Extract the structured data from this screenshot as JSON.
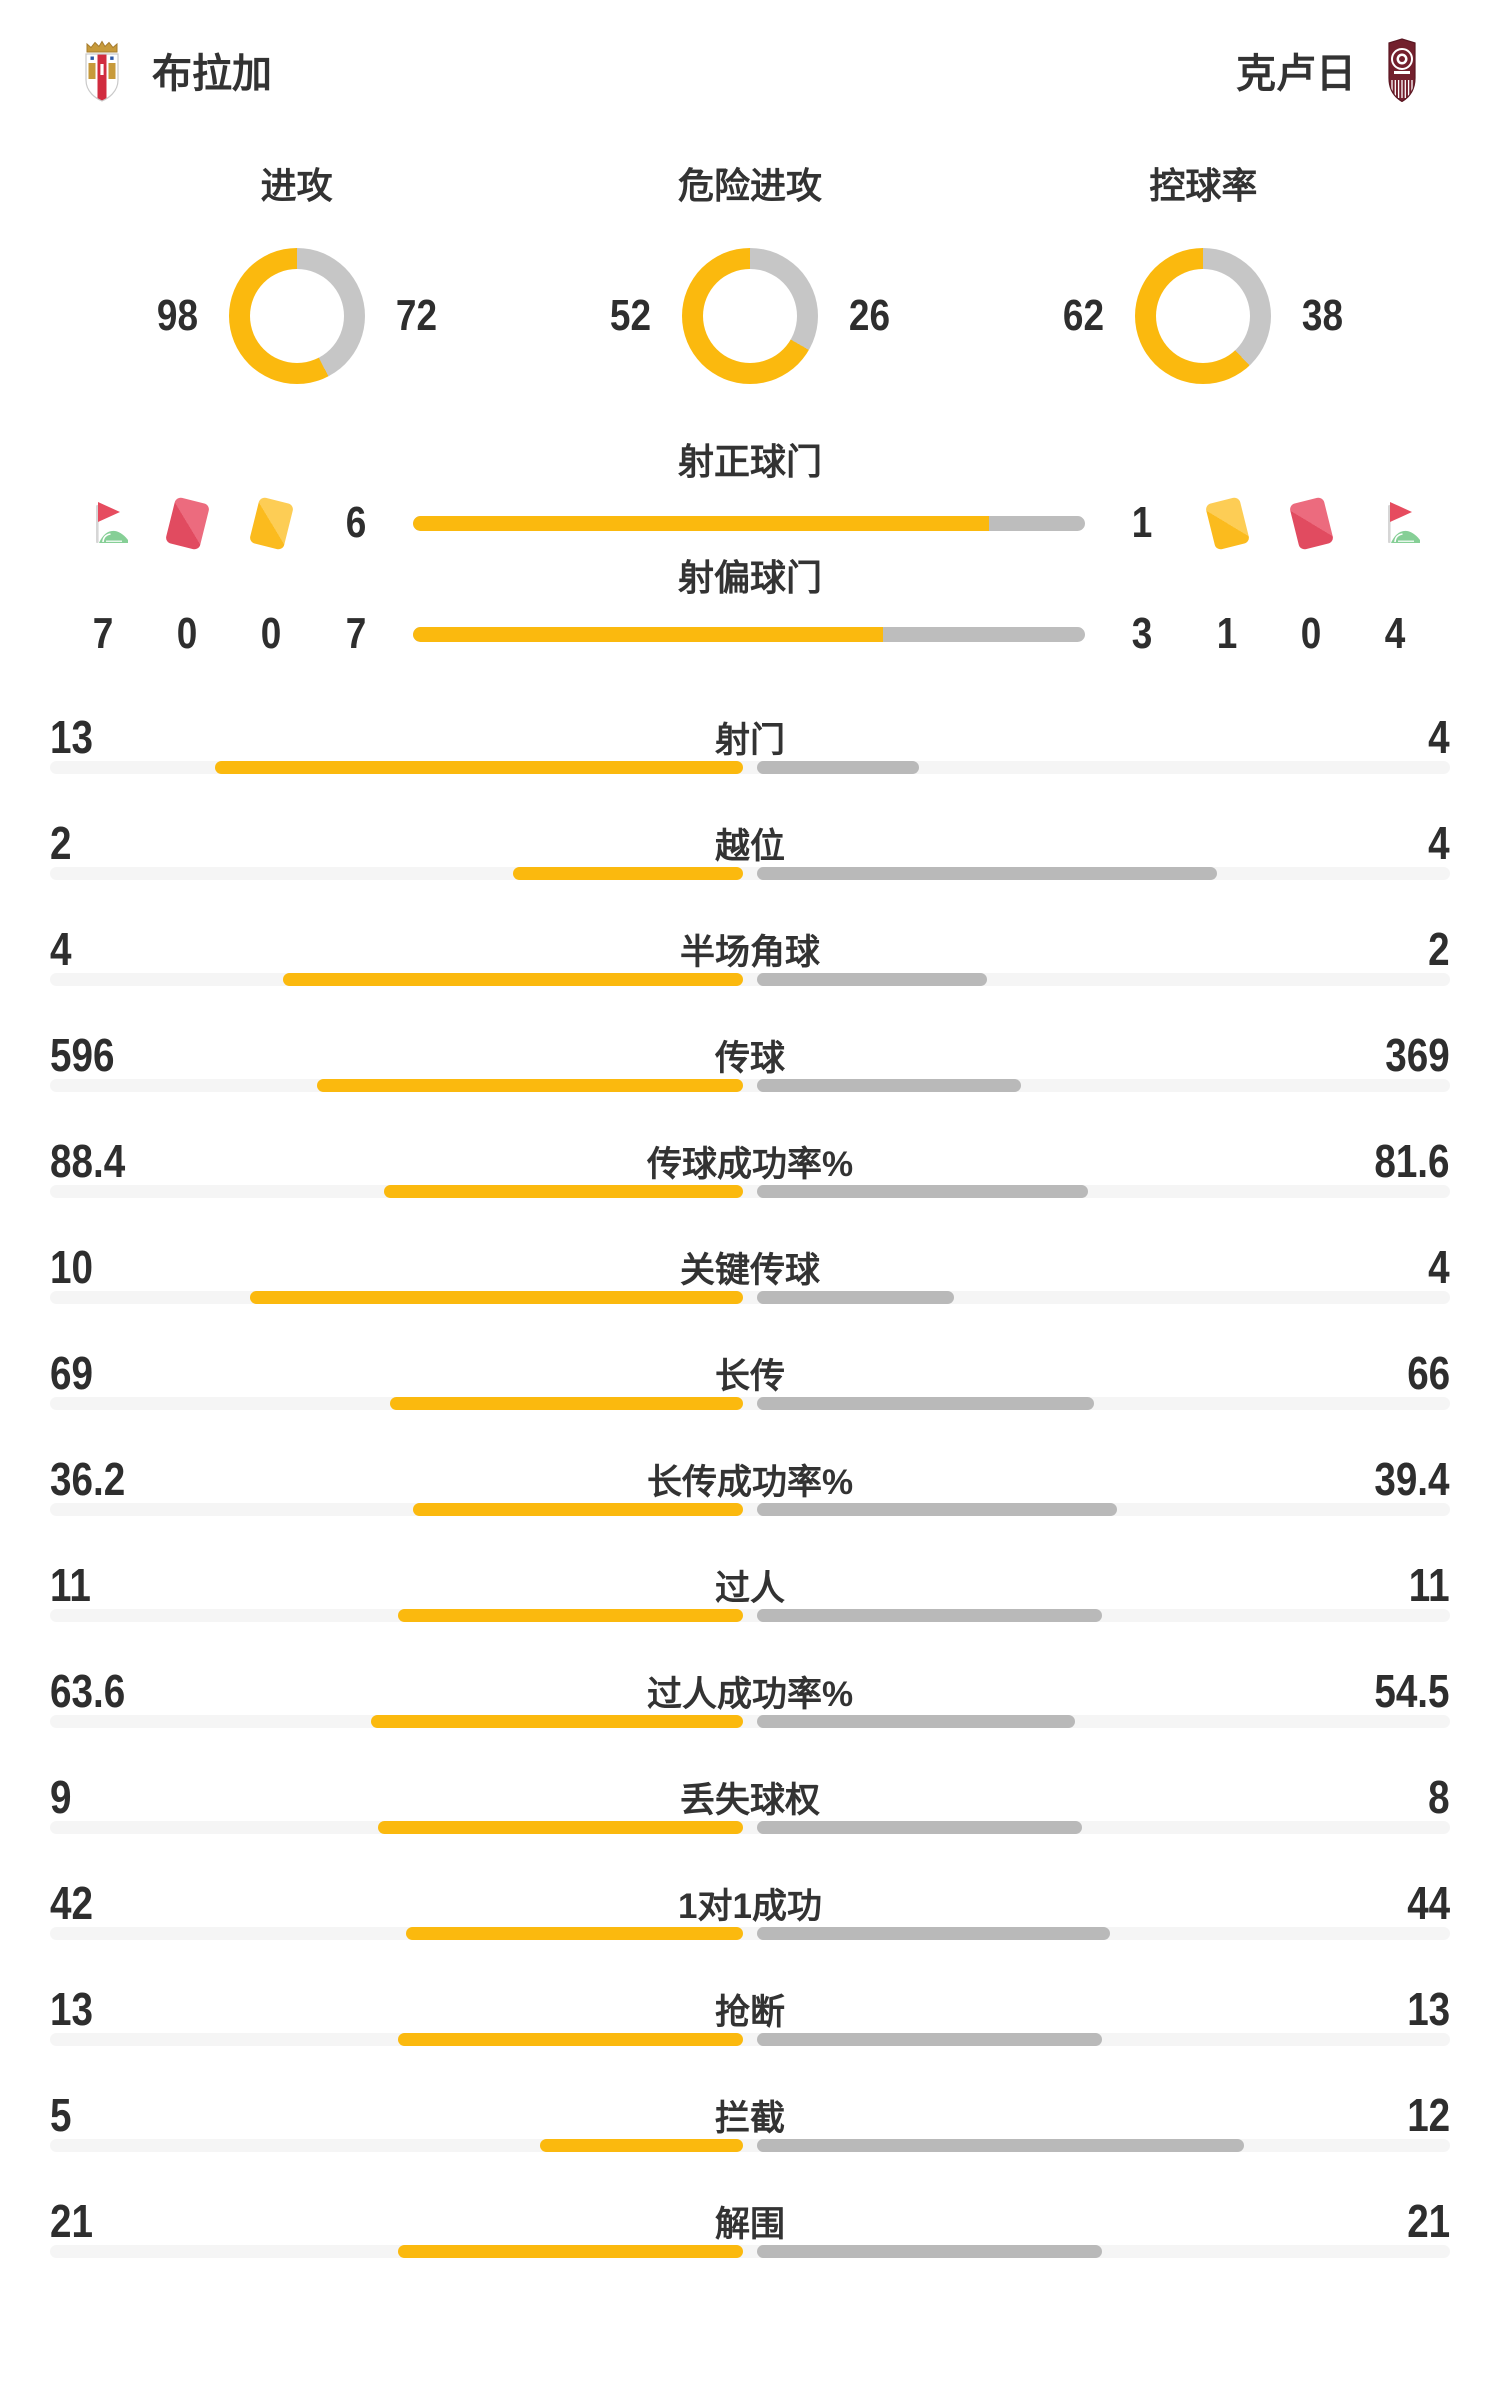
{
  "header": {
    "home_team": "布拉加",
    "away_team": "克卢日"
  },
  "chart_data": {
    "type": "bar",
    "teams": {
      "home": "布拉加",
      "away": "克卢日"
    },
    "legend_position": "none",
    "grid": false,
    "colors": {
      "home": "#FBB90E",
      "away_bar": "#B9B9B9",
      "away_donut": "#C6C6C6",
      "track": "#F5F5F5",
      "card_red": "#E14B60",
      "card_yellow": "#FBBB1E",
      "flag_green": "#86CF96",
      "text": "#333333"
    },
    "donuts": [
      {
        "label": "进攻",
        "home": 98,
        "away": 72
      },
      {
        "label": "危险进攻",
        "home": 52,
        "away": 26
      },
      {
        "label": "控球率",
        "home": 62,
        "away": 38
      }
    ],
    "discipline": {
      "home": {
        "corners": 7,
        "red_cards": 0,
        "yellow_cards": 0
      },
      "away": {
        "yellow_cards": 1,
        "red_cards": 0,
        "corners": 4
      }
    },
    "shots": [
      {
        "label": "射正球门",
        "home": 6,
        "away": 1
      },
      {
        "label": "射偏球门",
        "home": 7,
        "away": 3
      }
    ],
    "stats": [
      {
        "label": "射门",
        "home": 13,
        "away": 4
      },
      {
        "label": "越位",
        "home": 2,
        "away": 4
      },
      {
        "label": "半场角球",
        "home": 4,
        "away": 2
      },
      {
        "label": "传球",
        "home": 596,
        "away": 369
      },
      {
        "label": "传球成功率%",
        "home": 88.4,
        "away": 81.6
      },
      {
        "label": "关键传球",
        "home": 10,
        "away": 4
      },
      {
        "label": "长传",
        "home": 69,
        "away": 66
      },
      {
        "label": "长传成功率%",
        "home": 36.2,
        "away": 39.4
      },
      {
        "label": "过人",
        "home": 11,
        "away": 11
      },
      {
        "label": "过人成功率%",
        "home": 63.6,
        "away": 54.5
      },
      {
        "label": "丢失球权",
        "home": 9,
        "away": 8
      },
      {
        "label": "1对1成功",
        "home": 42,
        "away": 44
      },
      {
        "label": "抢断",
        "home": 13,
        "away": 13
      },
      {
        "label": "拦截",
        "home": 5,
        "away": 12
      },
      {
        "label": "解围",
        "home": 21,
        "away": 21
      }
    ]
  }
}
